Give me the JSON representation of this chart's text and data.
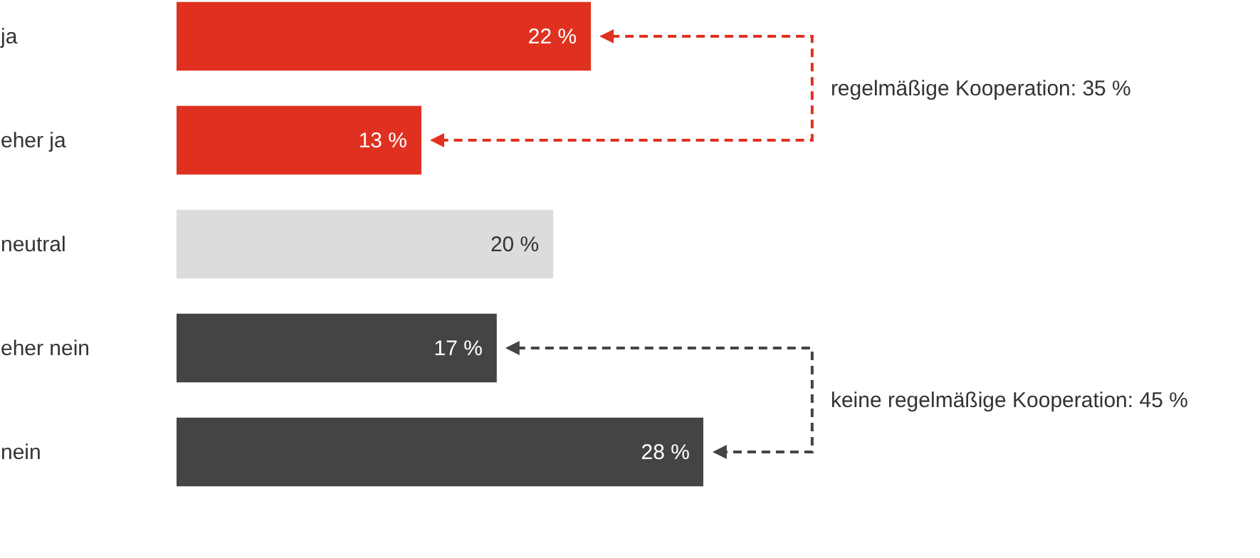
{
  "chart_data": {
    "type": "bar",
    "orientation": "horizontal",
    "categories": [
      "ja",
      "eher ja",
      "neutral",
      "eher nein",
      "nein"
    ],
    "values": [
      22,
      13,
      20,
      17,
      28
    ],
    "colors": [
      "#e03120",
      "#e03120",
      "#dcdcdc",
      "#444444",
      "#444444"
    ],
    "value_labels": [
      "22 %",
      "13 %",
      "20 %",
      "17 %",
      "28 %"
    ],
    "annotations": [
      "regelmäßige Kooperation: 35 %",
      "keine regelmäßige Kooperation: 45 %"
    ]
  }
}
